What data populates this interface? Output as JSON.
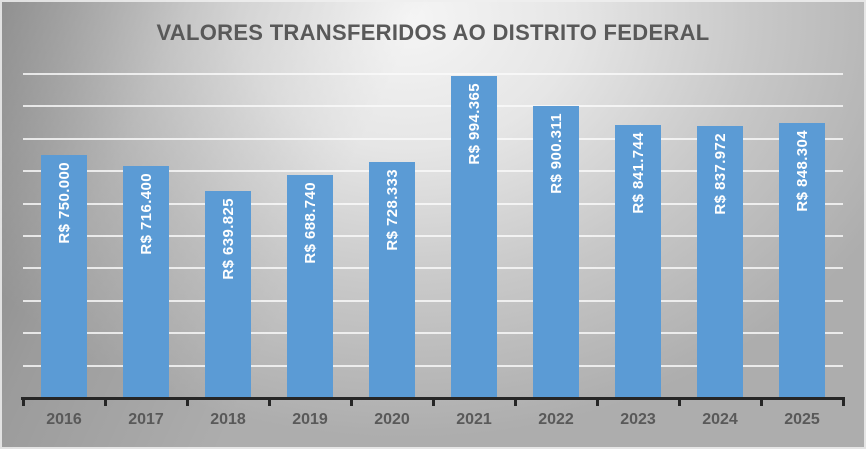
{
  "chart_data": {
    "type": "bar",
    "title": "VALORES TRANSFERIDOS AO DISTRITO FEDERAL",
    "categories": [
      "2016",
      "2017",
      "2018",
      "2019",
      "2020",
      "2021",
      "2022",
      "2023",
      "2024",
      "2025"
    ],
    "values": [
      750000,
      716400,
      639825,
      688740,
      728333,
      994365,
      900311,
      841744,
      837972,
      848304
    ],
    "data_labels": [
      "R$ 750.000",
      "R$ 716.400",
      "R$ 639.825",
      "R$ 688.740",
      "R$ 728.333",
      "R$ 994.365",
      "R$ 900.311",
      "R$ 841.744",
      "R$ 837.972",
      "R$ 848.304"
    ],
    "xlabel": "",
    "ylabel": "",
    "ylim": [
      0,
      1000000
    ],
    "gridline_step": 100000,
    "grid": true,
    "legend": false,
    "y_axis_labels_visible": false,
    "data_label_orientation": "vertical-bottom-to-top",
    "colors": {
      "bar": "#5B9BD5",
      "data_label": "#FFFFFF",
      "title": "#595959",
      "category_label": "#595959",
      "axis_line": "#262626",
      "gridline": "#FAFAFA",
      "background_light": "#F5F5F5",
      "background_mid": "#ADADAD"
    }
  }
}
